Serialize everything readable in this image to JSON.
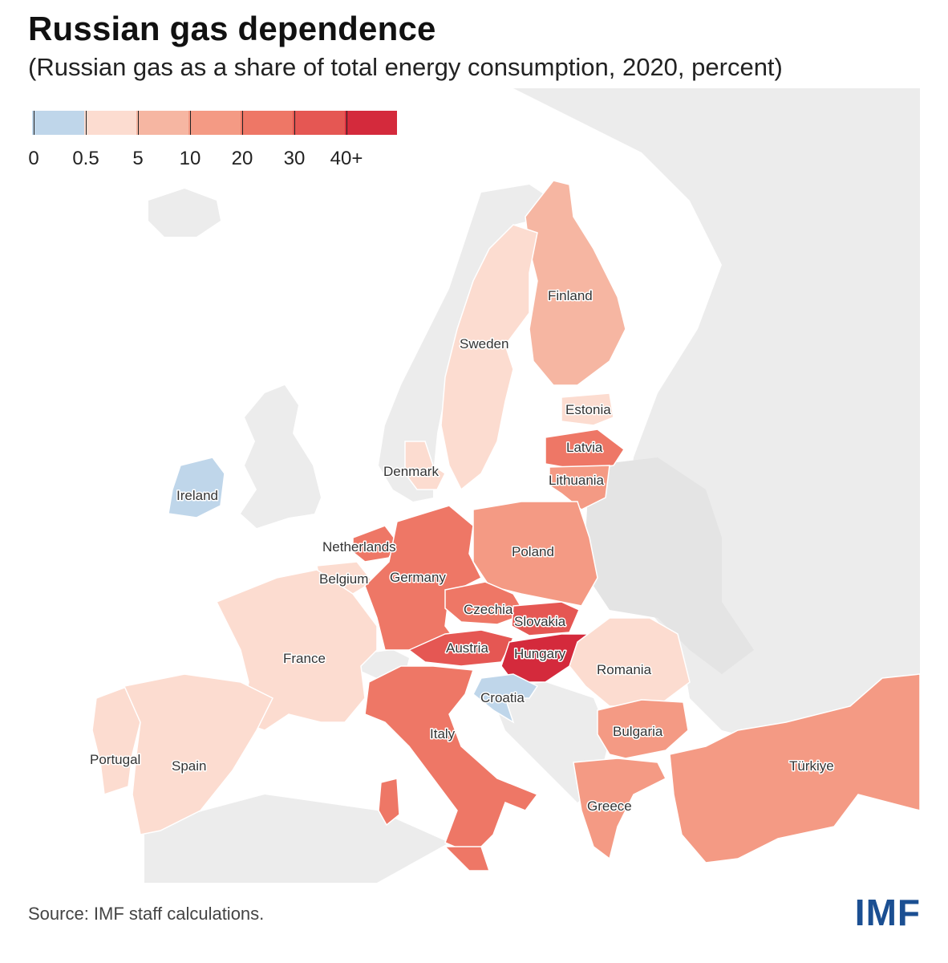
{
  "title": "Russian gas dependence",
  "subtitle": "(Russian gas as a share of total energy consumption, 2020, percent)",
  "legend": {
    "bins": [
      {
        "color": "#bfd6ea"
      },
      {
        "color": "#fcdcd0"
      },
      {
        "color": "#f6b6a2"
      },
      {
        "color": "#f49a84"
      },
      {
        "color": "#ee7766"
      },
      {
        "color": "#e55753"
      },
      {
        "color": "#d42a3c"
      }
    ],
    "labels": [
      "0",
      "0.5",
      "5",
      "10",
      "20",
      "30",
      "40+"
    ]
  },
  "colors": {
    "non_eu": "#ececec",
    "sea": "#ffffff",
    "border": "#ffffff"
  },
  "countries": [
    {
      "name": "Finland",
      "bin": 2
    },
    {
      "name": "Sweden",
      "bin": 1
    },
    {
      "name": "Estonia",
      "bin": 1
    },
    {
      "name": "Latvia",
      "bin": 4
    },
    {
      "name": "Lithuania",
      "bin": 3
    },
    {
      "name": "Denmark",
      "bin": 1
    },
    {
      "name": "Ireland",
      "bin": 0
    },
    {
      "name": "Netherlands",
      "bin": 4
    },
    {
      "name": "Belgium",
      "bin": 1
    },
    {
      "name": "Germany",
      "bin": 4
    },
    {
      "name": "Poland",
      "bin": 3
    },
    {
      "name": "Czechia",
      "bin": 4
    },
    {
      "name": "Slovakia",
      "bin": 5
    },
    {
      "name": "Austria",
      "bin": 5
    },
    {
      "name": "Hungary",
      "bin": 6
    },
    {
      "name": "France",
      "bin": 1
    },
    {
      "name": "Romania",
      "bin": 1
    },
    {
      "name": "Croatia",
      "bin": 0
    },
    {
      "name": "Italy",
      "bin": 4
    },
    {
      "name": "Bulgaria",
      "bin": 3
    },
    {
      "name": "Portugal",
      "bin": 1
    },
    {
      "name": "Spain",
      "bin": 1
    },
    {
      "name": "Greece",
      "bin": 3
    },
    {
      "name": "Türkiye",
      "bin": 3
    }
  ],
  "source": "Source: IMF staff calculations.",
  "logo": "IMF"
}
